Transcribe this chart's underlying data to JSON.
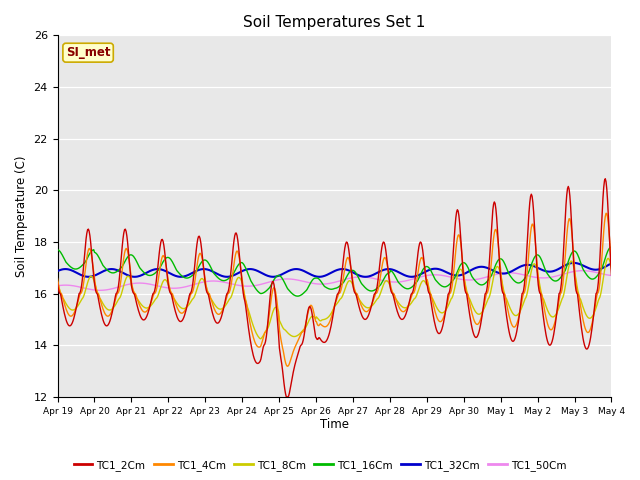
{
  "title": "Soil Temperatures Set 1",
  "ylabel": "Soil Temperature (C)",
  "xlabel": "Time",
  "annotation": "SI_met",
  "ylim": [
    12,
    26
  ],
  "xlim": [
    0,
    15
  ],
  "background_color": "#ffffff",
  "plot_bg_color": "#e8e8e8",
  "series_colors": {
    "TC1_2Cm": "#cc0000",
    "TC1_4Cm": "#ff8800",
    "TC1_8Cm": "#cccc00",
    "TC1_16Cm": "#00bb00",
    "TC1_32Cm": "#0000cc",
    "TC1_50Cm": "#ee88ee"
  },
  "xtick_labels": [
    "Apr 19",
    "Apr 20",
    "Apr 21",
    "Apr 22",
    "Apr 23",
    "Apr 24",
    "Apr 25",
    "Apr 26",
    "Apr 27",
    "Apr 28",
    "Apr 29",
    "Apr 30",
    "May 1",
    "May 2",
    "May 3",
    "May 4"
  ],
  "ytick_labels": [
    12,
    14,
    16,
    18,
    20,
    22,
    24,
    26
  ],
  "legend_labels": [
    "TC1_2Cm",
    "TC1_4Cm",
    "TC1_8Cm",
    "TC1_16Cm",
    "TC1_32Cm",
    "TC1_50Cm"
  ]
}
